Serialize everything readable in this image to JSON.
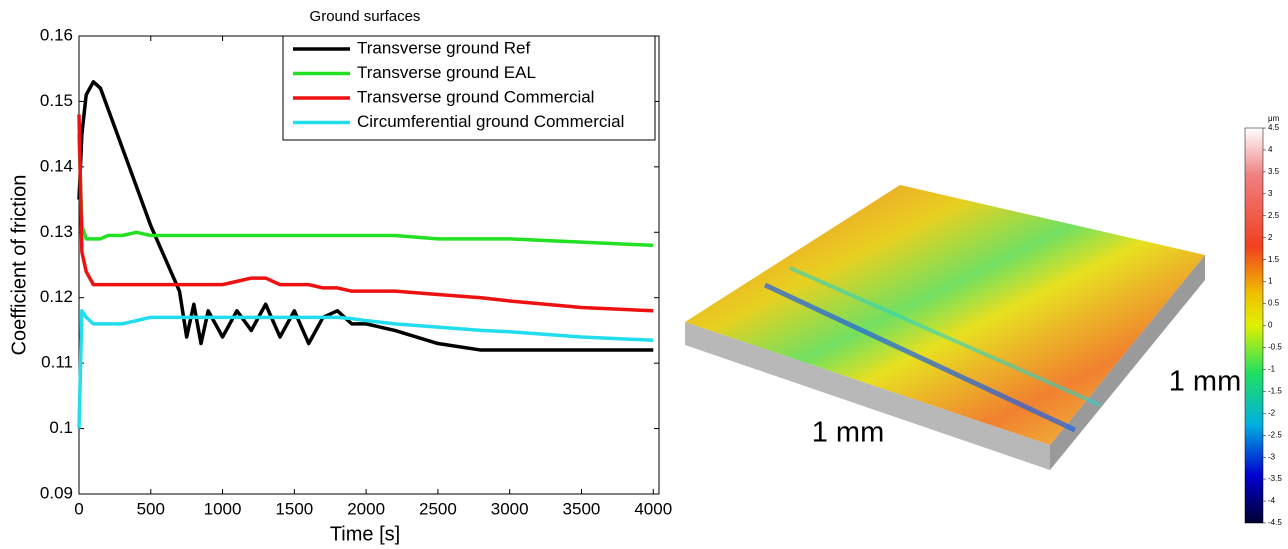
{
  "chart_data": {
    "type": "line",
    "title": "Ground surfaces",
    "x_label": "Time [s]",
    "y_label": "Coefficient of friction",
    "x": [
      0,
      20,
      50,
      100,
      150,
      200,
      300,
      400,
      500,
      600,
      700,
      750,
      800,
      850,
      900,
      1000,
      1100,
      1200,
      1300,
      1400,
      1500,
      1600,
      1700,
      1800,
      1900,
      2000,
      2200,
      2500,
      2800,
      3000,
      3500,
      4000
    ],
    "series": [
      {
        "name": "Transverse ground Ref",
        "color": "#000000",
        "values": [
          0.135,
          0.145,
          0.151,
          0.153,
          0.152,
          0.149,
          0.143,
          0.137,
          0.131,
          0.126,
          0.121,
          0.114,
          0.119,
          0.113,
          0.118,
          0.114,
          0.118,
          0.115,
          0.119,
          0.114,
          0.118,
          0.113,
          0.117,
          0.118,
          0.116,
          0.116,
          0.115,
          0.113,
          0.112,
          0.112,
          0.112,
          0.112
        ]
      },
      {
        "name": "Transverse ground EAL",
        "color": "#22e022",
        "values": [
          0.145,
          0.131,
          0.129,
          0.129,
          0.129,
          0.1295,
          0.1295,
          0.13,
          0.1295,
          0.1295,
          0.1295,
          0.1295,
          0.1295,
          0.1295,
          0.1295,
          0.1295,
          0.1295,
          0.1295,
          0.1295,
          0.1295,
          0.1295,
          0.1295,
          0.1295,
          0.1295,
          0.1295,
          0.1295,
          0.1295,
          0.129,
          0.129,
          0.129,
          0.1285,
          0.128
        ]
      },
      {
        "name": "Transverse ground Commercial",
        "color": "#ee1111",
        "values": [
          0.148,
          0.127,
          0.124,
          0.122,
          0.122,
          0.122,
          0.122,
          0.122,
          0.122,
          0.122,
          0.122,
          0.122,
          0.122,
          0.122,
          0.122,
          0.122,
          0.1225,
          0.123,
          0.123,
          0.122,
          0.122,
          0.122,
          0.1215,
          0.1215,
          0.121,
          0.121,
          0.121,
          0.1205,
          0.12,
          0.1195,
          0.1185,
          0.118
        ]
      },
      {
        "name": "Circumferential ground Commercial",
        "color": "#22ddee",
        "values": [
          0.1,
          0.118,
          0.117,
          0.116,
          0.116,
          0.116,
          0.116,
          0.1165,
          0.117,
          0.117,
          0.117,
          0.117,
          0.117,
          0.117,
          0.117,
          0.117,
          0.117,
          0.117,
          0.117,
          0.117,
          0.117,
          0.117,
          0.117,
          0.117,
          0.1168,
          0.1165,
          0.116,
          0.1155,
          0.115,
          0.1148,
          0.114,
          0.1135
        ]
      }
    ],
    "xlim": [
      0,
      4040
    ],
    "xticks": [
      0,
      500,
      1000,
      1500,
      2000,
      2500,
      3000,
      3500,
      4000
    ],
    "ylim": [
      0.09,
      0.16
    ],
    "yticks": [
      0.09,
      0.1,
      0.11,
      0.12,
      0.13,
      0.14,
      0.15,
      0.16
    ],
    "legend": "top-right"
  },
  "surface": {
    "x_label": "1 mm",
    "y_label": "1 mm",
    "colorbar": {
      "unit": "μm",
      "lim": [
        -4.5,
        4.5
      ],
      "ticks": [
        4.5,
        4,
        3.5,
        3,
        2.5,
        2,
        1.5,
        1,
        0.5,
        0,
        -0.5,
        -1,
        -1.5,
        -2,
        -2.5,
        -3,
        -3.5,
        -4,
        -4.5
      ]
    }
  }
}
